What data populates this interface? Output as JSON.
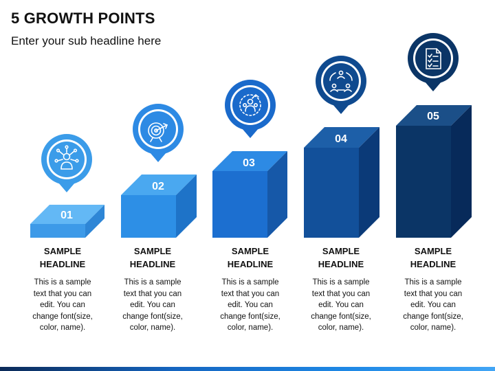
{
  "title": "5 GROWTH POINTS",
  "subtitle": "Enter your sub headline here",
  "colors": {
    "light_blue": "#4aa8f0",
    "blue": "#2b8be0",
    "mid_blue": "#1565c0",
    "dark_blue": "#0d4a8f",
    "navy": "#0b3566"
  },
  "steps": [
    {
      "number": "01",
      "headline_line1": "SAMPLE",
      "headline_line2": "HEADLINE",
      "body": [
        "This is a sample",
        "text that you can",
        "edit. You can",
        "change font(size,",
        "color, name)."
      ],
      "icon": "user-network-icon"
    },
    {
      "number": "02",
      "headline_line1": "SAMPLE",
      "headline_line2": "HEADLINE",
      "body": [
        "This is a sample",
        "text that you can",
        "edit. You can",
        "change font(size,",
        "color, name)."
      ],
      "icon": "target-icon"
    },
    {
      "number": "03",
      "headline_line1": "SAMPLE",
      "headline_line2": "HEADLINE",
      "body": [
        "This is a sample",
        "text that you can",
        "edit. You can",
        "change font(size,",
        "color, name)."
      ],
      "icon": "team-growth-icon"
    },
    {
      "number": "04",
      "headline_line1": "SAMPLE",
      "headline_line2": "HEADLINE",
      "body": [
        "This is a sample",
        "text that you can",
        "edit. You can",
        "change font(size,",
        "color, name)."
      ],
      "icon": "collaboration-cycle-icon"
    },
    {
      "number": "05",
      "headline_line1": "SAMPLE",
      "headline_line2": "HEADLINE",
      "body": [
        "This is a sample",
        "text that you can",
        "edit. You can",
        "change font(size,",
        "color, name)."
      ],
      "icon": "checklist-document-icon"
    }
  ]
}
